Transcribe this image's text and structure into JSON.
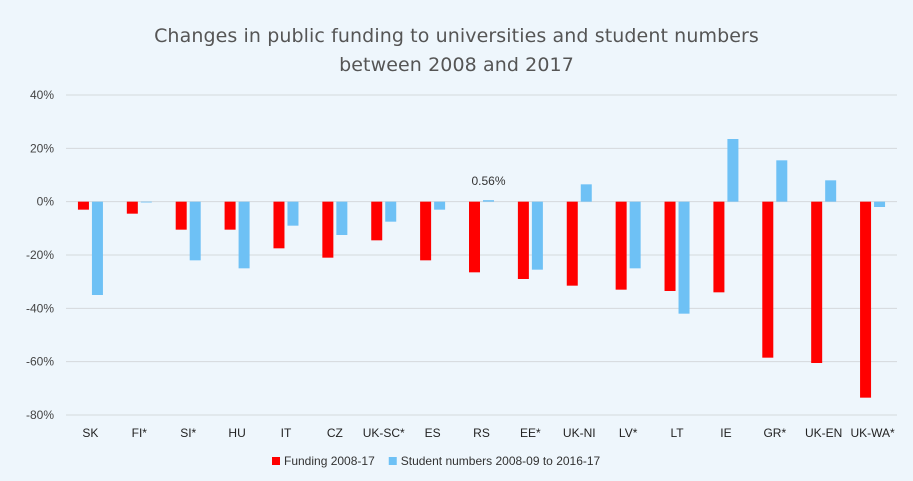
{
  "chart_data": {
    "type": "bar",
    "title_lines": [
      "Changes in public funding to universities and student numbers",
      "between 2008 and 2017"
    ],
    "xlabel": "",
    "ylabel": "",
    "ylim": [
      -80,
      40
    ],
    "yticks": [
      40,
      20,
      0,
      -20,
      -40,
      -60,
      -80
    ],
    "ytick_labels": [
      "40%",
      "20%",
      "0%",
      "-20%",
      "-40%",
      "-60%",
      "-80%"
    ],
    "grid": true,
    "legend_position": "bottom",
    "categories": [
      "SK",
      "FI*",
      "SI*",
      "HU",
      "IT",
      "CZ",
      "UK-SC*",
      "ES",
      "RS",
      "EE*",
      "UK-NI",
      "LV*",
      "LT",
      "IE",
      "GR*",
      "UK-EN",
      "UK-WA*"
    ],
    "series": [
      {
        "name": "Funding 2008-17",
        "color": "#ff0000",
        "values": [
          -3,
          -4.5,
          -10.5,
          -10.5,
          -17.5,
          -21,
          -14.5,
          -22,
          -26.5,
          -29,
          -31.5,
          -33,
          -33.5,
          -34,
          -58.5,
          -60.5,
          -73.5
        ]
      },
      {
        "name": "Student numbers 2008-09 to 2016-17",
        "color": "#6ec1f5",
        "values": [
          -35,
          -0.3,
          -22,
          -25,
          -9,
          -12.5,
          -7.5,
          -3,
          0.56,
          -25.5,
          6.5,
          -25,
          -42,
          23.5,
          15.5,
          8,
          -2
        ]
      }
    ],
    "annotations": [
      {
        "text": "0.56%",
        "category": "RS",
        "series": 1
      }
    ]
  }
}
